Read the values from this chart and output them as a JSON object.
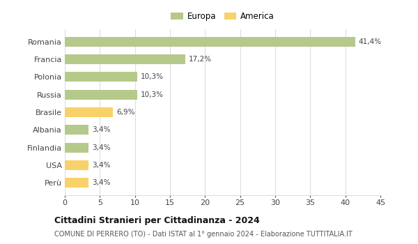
{
  "categories": [
    "Romania",
    "Francia",
    "Polonia",
    "Russia",
    "Brasile",
    "Albania",
    "Finlandia",
    "USA",
    "Perù"
  ],
  "values": [
    41.4,
    17.2,
    10.3,
    10.3,
    6.9,
    3.4,
    3.4,
    3.4,
    3.4
  ],
  "colors": [
    "#b5c98a",
    "#b5c98a",
    "#b5c98a",
    "#b5c98a",
    "#f9d16a",
    "#b5c98a",
    "#b5c98a",
    "#f9d16a",
    "#f9d16a"
  ],
  "labels": [
    "41,4%",
    "17,2%",
    "10,3%",
    "10,3%",
    "6,9%",
    "3,4%",
    "3,4%",
    "3,4%",
    "3,4%"
  ],
  "legend": [
    {
      "label": "Europa",
      "color": "#b5c98a"
    },
    {
      "label": "America",
      "color": "#f9d16a"
    }
  ],
  "xlim": [
    0,
    45
  ],
  "xticks": [
    0,
    5,
    10,
    15,
    20,
    25,
    30,
    35,
    40,
    45
  ],
  "title": "Cittadini Stranieri per Cittadinanza - 2024",
  "subtitle": "COMUNE DI PERRERO (TO) - Dati ISTAT al 1° gennaio 2024 - Elaborazione TUTTITALIA.IT",
  "background_color": "#ffffff",
  "grid_color": "#dddddd",
  "bar_height": 0.55
}
